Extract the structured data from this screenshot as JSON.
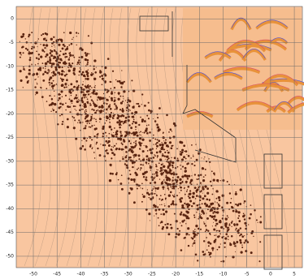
{
  "chart_data": {
    "type": "map",
    "xlim": [
      -53.6,
      6.7
    ],
    "xticks": [
      -50,
      -45,
      -40,
      -35,
      -30,
      -25,
      -20,
      -15,
      -10,
      -5,
      0,
      5
    ],
    "ylim": [
      -52.4,
      2.6
    ],
    "yticks": [
      0,
      -5,
      -10,
      -15,
      -20,
      -25,
      -30,
      -35,
      -40,
      -45,
      -50
    ],
    "grid": true
  }
}
